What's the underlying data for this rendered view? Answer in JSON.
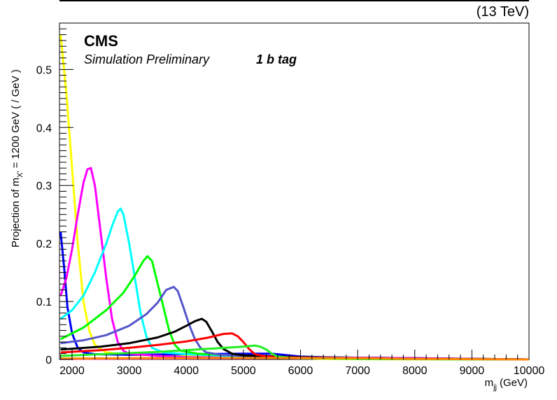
{
  "header": {
    "energy_label": "(13 TeV)",
    "experiment": "CMS",
    "status": "Simulation Preliminary",
    "category": "1 b tag"
  },
  "chart_data": {
    "type": "line",
    "title": "",
    "xlabel_main": "m",
    "xlabel_sub": "jj",
    "xlabel_unit": "(GeV)",
    "ylabel_main": "Projection of m",
    "ylabel_sub": "X'",
    "ylabel_rest": "= 1200 GeV ( / GeV )",
    "xlim": [
      1780,
      10000
    ],
    "ylim": [
      0,
      0.58
    ],
    "grid": false,
    "x_ticks": [
      2000,
      3000,
      4000,
      5000,
      6000,
      7000,
      8000,
      9000,
      10000
    ],
    "y_ticks": [
      0,
      0.1,
      0.2,
      0.3,
      0.4,
      0.5
    ],
    "y_tick_labels": [
      "0",
      "0.1",
      "0.2",
      "0.3",
      "0.4",
      "0.5"
    ],
    "series": [
      {
        "color": "#ffff00",
        "x": [
          1800,
          1900,
          2000,
          2100,
          2200,
          2300,
          2400,
          2600,
          3000,
          4000,
          5000,
          6000,
          6500,
          7000,
          8000,
          10000
        ],
        "y": [
          0.56,
          0.46,
          0.33,
          0.2,
          0.1,
          0.05,
          0.025,
          0.012,
          0.008,
          0.006,
          0.004,
          0.002,
          0.001,
          0.0005,
          0.0002,
          0.0
        ]
      },
      {
        "color": "#0000ff",
        "x": [
          1800,
          1860,
          1920,
          2000,
          2100,
          2200,
          2400,
          3000,
          4000,
          5000,
          5500,
          6000,
          7000,
          10000
        ],
        "y": [
          0.22,
          0.16,
          0.09,
          0.045,
          0.02,
          0.012,
          0.009,
          0.008,
          0.009,
          0.01,
          0.01,
          0.005,
          0.002,
          0.0
        ]
      },
      {
        "color": "#ff00ff",
        "x": [
          1800,
          1900,
          2000,
          2100,
          2200,
          2270,
          2330,
          2400,
          2500,
          2600,
          2700,
          2800,
          2900,
          3000,
          3500,
          4000,
          5000,
          6000,
          7000,
          8000,
          9000,
          10000
        ],
        "y": [
          0.11,
          0.14,
          0.19,
          0.25,
          0.305,
          0.328,
          0.33,
          0.3,
          0.22,
          0.14,
          0.07,
          0.03,
          0.015,
          0.01,
          0.006,
          0.004,
          0.003,
          0.002,
          0.002,
          0.001,
          0.001,
          0.0
        ]
      },
      {
        "color": "#00ffff",
        "x": [
          1800,
          2000,
          2200,
          2400,
          2600,
          2700,
          2800,
          2850,
          2900,
          3000,
          3100,
          3200,
          3300,
          3400,
          3600,
          4000,
          5000,
          6000,
          7000,
          10000
        ],
        "y": [
          0.07,
          0.085,
          0.11,
          0.15,
          0.2,
          0.23,
          0.255,
          0.26,
          0.25,
          0.2,
          0.14,
          0.08,
          0.04,
          0.02,
          0.012,
          0.009,
          0.005,
          0.003,
          0.001,
          0.0
        ]
      },
      {
        "color": "#00ff00",
        "x": [
          1800,
          2200,
          2600,
          2900,
          3100,
          3250,
          3320,
          3400,
          3500,
          3600,
          3700,
          3800,
          3900,
          4200,
          5000,
          6000,
          7000,
          8000,
          10000
        ],
        "y": [
          0.035,
          0.055,
          0.085,
          0.115,
          0.145,
          0.17,
          0.178,
          0.17,
          0.13,
          0.09,
          0.05,
          0.025,
          0.015,
          0.01,
          0.006,
          0.004,
          0.003,
          0.002,
          0.0
        ]
      },
      {
        "color": "#5555cc",
        "x": [
          1800,
          2200,
          2600,
          3000,
          3300,
          3500,
          3650,
          3780,
          3850,
          3950,
          4050,
          4150,
          4250,
          4350,
          4600,
          5000,
          6000,
          7000,
          8000,
          10000
        ],
        "y": [
          0.028,
          0.033,
          0.042,
          0.058,
          0.078,
          0.098,
          0.12,
          0.125,
          0.118,
          0.09,
          0.06,
          0.035,
          0.02,
          0.012,
          0.008,
          0.006,
          0.004,
          0.003,
          0.002,
          0.0
        ]
      },
      {
        "color": "#000000",
        "x": [
          1800,
          2500,
          3000,
          3500,
          3800,
          4000,
          4150,
          4270,
          4350,
          4450,
          4550,
          4650,
          4800,
          5000,
          6000,
          7000,
          8000,
          10000
        ],
        "y": [
          0.017,
          0.022,
          0.028,
          0.038,
          0.048,
          0.058,
          0.066,
          0.07,
          0.065,
          0.048,
          0.03,
          0.018,
          0.01,
          0.007,
          0.004,
          0.003,
          0.002,
          0.0
        ]
      },
      {
        "color": "#ff0000",
        "x": [
          1800,
          2500,
          3000,
          3500,
          4000,
          4400,
          4650,
          4800,
          4900,
          5000,
          5100,
          5200,
          5400,
          5700,
          6000,
          7000,
          8000,
          10000
        ],
        "y": [
          0.012,
          0.016,
          0.02,
          0.025,
          0.031,
          0.038,
          0.044,
          0.045,
          0.04,
          0.03,
          0.018,
          0.009,
          0.005,
          0.004,
          0.003,
          0.002,
          0.001,
          0.0
        ]
      },
      {
        "color": "#22ee22",
        "x": [
          1800,
          2500,
          3000,
          3500,
          4000,
          4500,
          5000,
          5200,
          5300,
          5400,
          5500,
          5600,
          5800,
          6000,
          7000,
          8000,
          10000
        ],
        "y": [
          0.006,
          0.009,
          0.011,
          0.013,
          0.016,
          0.019,
          0.022,
          0.024,
          0.022,
          0.017,
          0.01,
          0.005,
          0.003,
          0.002,
          0.001,
          0.0005,
          0.0
        ]
      },
      {
        "color": "#dd00dd",
        "x": [
          1800,
          3000,
          5000,
          7000,
          8000,
          9000,
          10000
        ],
        "y": [
          0.001,
          0.0015,
          0.002,
          0.003,
          0.002,
          0.001,
          0.0
        ]
      },
      {
        "color": "#ff8800",
        "x": [
          1800,
          3000,
          5000,
          7000,
          8000,
          10000
        ],
        "y": [
          0.0015,
          0.002,
          0.0025,
          0.002,
          0.001,
          0.0
        ]
      }
    ]
  }
}
